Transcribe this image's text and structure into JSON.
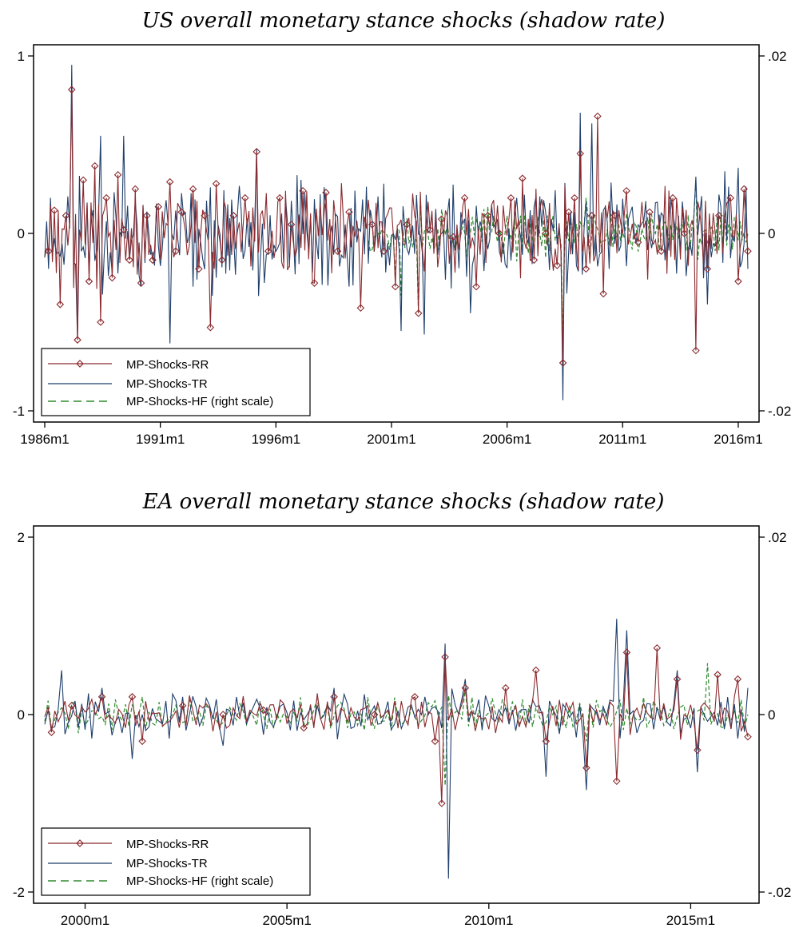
{
  "colors": {
    "rr": "#8B2A2E",
    "tr": "#1F3F6B",
    "hf": "#2E8B2E",
    "axis": "#000000"
  },
  "legend": {
    "rr": "MP-Shocks-RR",
    "tr": "MP-Shocks-TR",
    "hf": "MP-Shocks-HF (right scale)"
  },
  "chart_data": [
    {
      "type": "line",
      "title": "US overall monetary stance shocks (shadow rate)",
      "x_range": [
        "1986-01",
        "2016-06"
      ],
      "x_ticks": [
        "1986m1",
        "1991m1",
        "1996m1",
        "2001m1",
        "2006m1",
        "2011m1",
        "2016m1"
      ],
      "y_left": {
        "range": [
          -1,
          1
        ],
        "ticks": [
          "1",
          "0",
          "-1"
        ],
        "tick_values": [
          1,
          0,
          -1
        ]
      },
      "y_right": {
        "range": [
          -0.02,
          0.02
        ],
        "ticks": [
          ".02",
          "0",
          "-.02"
        ],
        "tick_values": [
          0.02,
          0,
          -0.02
        ]
      },
      "legend_placement": "bottom-left",
      "series": [
        {
          "name": "MP-Shocks-RR",
          "key": "rr",
          "axis": "left",
          "start": "1986-01",
          "end": "2016-06",
          "points": [
            [
              "1986-03",
              -0.1
            ],
            [
              "1986-06",
              0.13
            ],
            [
              "1986-09",
              -0.4
            ],
            [
              "1986-12",
              0.1
            ],
            [
              "1987-03",
              0.81
            ],
            [
              "1987-06",
              -0.6
            ],
            [
              "1987-09",
              0.3
            ],
            [
              "1987-12",
              -0.27
            ],
            [
              "1988-03",
              0.38
            ],
            [
              "1988-06",
              -0.5
            ],
            [
              "1988-09",
              0.2
            ],
            [
              "1988-12",
              -0.25
            ],
            [
              "1989-03",
              0.33
            ],
            [
              "1989-06",
              0.02
            ],
            [
              "1989-09",
              -0.15
            ],
            [
              "1989-12",
              0.25
            ],
            [
              "1990-03",
              -0.28
            ],
            [
              "1990-06",
              0.1
            ],
            [
              "1990-09",
              -0.15
            ],
            [
              "1990-12",
              0.15
            ],
            [
              "1991-06",
              0.29
            ],
            [
              "1991-09",
              -0.1
            ],
            [
              "1991-12",
              0.12
            ],
            [
              "1992-06",
              0.25
            ],
            [
              "1992-09",
              -0.2
            ],
            [
              "1992-12",
              0.1
            ],
            [
              "1993-03",
              -0.53
            ],
            [
              "1993-06",
              0.28
            ],
            [
              "1993-09",
              -0.15
            ],
            [
              "1994-03",
              0.1
            ],
            [
              "1994-09",
              0.2
            ],
            [
              "1995-03",
              0.46
            ],
            [
              "1995-09",
              -0.1
            ],
            [
              "1996-03",
              0.2
            ],
            [
              "1996-09",
              0.05
            ],
            [
              "1997-03",
              0.24
            ],
            [
              "1997-09",
              -0.28
            ],
            [
              "1998-03",
              0.23
            ],
            [
              "1998-09",
              -0.1
            ],
            [
              "1999-03",
              0.12
            ],
            [
              "1999-09",
              -0.42
            ],
            [
              "2000-03",
              0.05
            ],
            [
              "2000-09",
              -0.1
            ],
            [
              "2001-03",
              -0.3
            ],
            [
              "2001-09",
              0.05
            ],
            [
              "2002-03",
              -0.45
            ],
            [
              "2002-09",
              0.02
            ],
            [
              "2003-03",
              0.08
            ],
            [
              "2003-09",
              -0.02
            ],
            [
              "2004-03",
              0.2
            ],
            [
              "2004-09",
              -0.3
            ],
            [
              "2005-03",
              0.1
            ],
            [
              "2005-09",
              0.0
            ],
            [
              "2006-03",
              0.2
            ],
            [
              "2006-09",
              0.31
            ],
            [
              "2007-03",
              -0.15
            ],
            [
              "2007-09",
              0.0
            ],
            [
              "2008-03",
              -0.18
            ],
            [
              "2008-06",
              -0.73
            ],
            [
              "2008-09",
              0.12
            ],
            [
              "2008-12",
              0.2
            ],
            [
              "2009-03",
              0.45
            ],
            [
              "2009-06",
              -0.2
            ],
            [
              "2009-09",
              0.1
            ],
            [
              "2009-12",
              0.66
            ],
            [
              "2010-03",
              -0.34
            ],
            [
              "2010-09",
              0.1
            ],
            [
              "2011-03",
              0.24
            ],
            [
              "2011-09",
              -0.05
            ],
            [
              "2012-03",
              0.12
            ],
            [
              "2012-09",
              -0.1
            ],
            [
              "2013-03",
              0.2
            ],
            [
              "2013-09",
              0.0
            ],
            [
              "2014-03",
              -0.66
            ],
            [
              "2014-09",
              -0.2
            ],
            [
              "2015-03",
              0.1
            ],
            [
              "2015-09",
              0.2
            ],
            [
              "2016-01",
              -0.27
            ],
            [
              "2016-04",
              0.25
            ],
            [
              "2016-06",
              -0.1
            ]
          ],
          "n_points": 366,
          "amplitude": 0.22,
          "seed": 11
        },
        {
          "name": "MP-Shocks-TR",
          "key": "tr",
          "axis": "left",
          "start": "1986-01",
          "end": "2016-06",
          "points": [
            [
              "1986-03",
              -0.2
            ],
            [
              "1987-03",
              0.95
            ],
            [
              "1987-06",
              -0.6
            ],
            [
              "1988-06",
              0.55
            ],
            [
              "1989-06",
              0.55
            ],
            [
              "1990-03",
              -0.3
            ],
            [
              "1991-06",
              -0.62
            ],
            [
              "1992-06",
              -0.3
            ],
            [
              "1993-06",
              -0.25
            ],
            [
              "1995-03",
              0.48
            ],
            [
              "1996-06",
              0.2
            ],
            [
              "1999-03",
              -0.3
            ],
            [
              "2000-09",
              0.28
            ],
            [
              "2001-06",
              -0.55
            ],
            [
              "2002-06",
              -0.57
            ],
            [
              "2003-03",
              0.0
            ],
            [
              "2004-06",
              -0.45
            ],
            [
              "2006-06",
              0.2
            ],
            [
              "2008-06",
              -0.94
            ],
            [
              "2009-03",
              0.68
            ],
            [
              "2009-09",
              0.62
            ],
            [
              "2010-06",
              -0.2
            ],
            [
              "2011-06",
              0.15
            ],
            [
              "2013-06",
              0.1
            ],
            [
              "2014-03",
              0.32
            ],
            [
              "2014-09",
              -0.4
            ],
            [
              "2015-06",
              0.35
            ],
            [
              "2016-01",
              0.37
            ],
            [
              "2016-06",
              -0.2
            ]
          ],
          "n_points": 366,
          "amplitude": 0.26,
          "seed": 23
        },
        {
          "name": "MP-Shocks-HF (right scale)",
          "key": "hf",
          "axis": "right",
          "start": "2000-01",
          "end": "2016-06",
          "points": [
            [
              "2000-06",
              0.0
            ],
            [
              "2001-03",
              -0.005
            ],
            [
              "2001-06",
              -0.007
            ],
            [
              "2002-03",
              -0.009
            ],
            [
              "2003-06",
              0.001
            ],
            [
              "2005-06",
              0.002
            ],
            [
              "2007-06",
              0.0
            ],
            [
              "2008-06",
              -0.012
            ],
            [
              "2009-06",
              0.004
            ],
            [
              "2012-06",
              0.0
            ],
            [
              "2014-03",
              0.006
            ],
            [
              "2015-06",
              0.002
            ],
            [
              "2016-06",
              0.0
            ]
          ],
          "n_points": 198,
          "amplitude": 0.0025,
          "seed": 37
        }
      ]
    },
    {
      "type": "line",
      "title": "EA overall monetary stance shocks (shadow rate)",
      "x_range": [
        "1999-01",
        "2016-06"
      ],
      "x_ticks": [
        "2000m1",
        "2005m1",
        "2010m1",
        "2015m1"
      ],
      "y_left": {
        "range": [
          -2,
          2
        ],
        "ticks": [
          "2",
          "0",
          "-2"
        ],
        "tick_values": [
          2,
          0,
          -2
        ]
      },
      "y_right": {
        "range": [
          -0.02,
          0.02
        ],
        "ticks": [
          ".02",
          "0",
          "-.02"
        ],
        "tick_values": [
          0.02,
          0,
          -0.02
        ]
      },
      "legend_placement": "bottom-left",
      "series": [
        {
          "name": "MP-Shocks-RR",
          "key": "rr",
          "axis": "left",
          "start": "1999-01",
          "end": "2016-06",
          "points": [
            [
              "1999-03",
              -0.2
            ],
            [
              "1999-09",
              0.1
            ],
            [
              "2000-06",
              0.2
            ],
            [
              "2001-03",
              0.2
            ],
            [
              "2001-06",
              -0.3
            ],
            [
              "2002-06",
              0.1
            ],
            [
              "2003-06",
              0.0
            ],
            [
              "2004-06",
              0.05
            ],
            [
              "2005-06",
              -0.15
            ],
            [
              "2006-03",
              0.2
            ],
            [
              "2007-03",
              0.0
            ],
            [
              "2008-03",
              0.2
            ],
            [
              "2008-09",
              -0.3
            ],
            [
              "2008-11",
              -1.0
            ],
            [
              "2008-12",
              0.65
            ],
            [
              "2009-06",
              0.3
            ],
            [
              "2010-06",
              0.3
            ],
            [
              "2011-03",
              0.5
            ],
            [
              "2011-06",
              -0.3
            ],
            [
              "2012-06",
              -0.6
            ],
            [
              "2013-03",
              -0.75
            ],
            [
              "2013-06",
              0.7
            ],
            [
              "2014-03",
              0.75
            ],
            [
              "2014-09",
              0.4
            ],
            [
              "2015-03",
              -0.4
            ],
            [
              "2015-09",
              0.45
            ],
            [
              "2016-03",
              0.4
            ],
            [
              "2016-06",
              -0.25
            ]
          ],
          "n_points": 210,
          "amplitude": 0.18,
          "seed": 51
        },
        {
          "name": "MP-Shocks-TR",
          "key": "tr",
          "axis": "left",
          "start": "1999-01",
          "end": "2016-06",
          "points": [
            [
              "1999-06",
              0.5
            ],
            [
              "2000-06",
              0.3
            ],
            [
              "2001-03",
              -0.5
            ],
            [
              "2002-06",
              0.2
            ],
            [
              "2003-06",
              -0.35
            ],
            [
              "2006-03",
              0.3
            ],
            [
              "2008-06",
              0.2
            ],
            [
              "2008-12",
              0.8
            ],
            [
              "2009-01",
              -1.85
            ],
            [
              "2009-06",
              0.4
            ],
            [
              "2011-06",
              -0.7
            ],
            [
              "2012-06",
              -0.85
            ],
            [
              "2013-03",
              1.08
            ],
            [
              "2013-06",
              0.95
            ],
            [
              "2014-09",
              0.5
            ],
            [
              "2015-03",
              -0.65
            ],
            [
              "2016-06",
              0.3
            ]
          ],
          "n_points": 210,
          "amplitude": 0.22,
          "seed": 67
        },
        {
          "name": "MP-Shocks-HF (right scale)",
          "key": "hf",
          "axis": "right",
          "start": "1999-01",
          "end": "2016-06",
          "points": [
            [
              "2001-06",
              0.002
            ],
            [
              "2004-06",
              0.0
            ],
            [
              "2008-12",
              -0.008
            ],
            [
              "2009-06",
              0.003
            ],
            [
              "2012-06",
              -0.003
            ],
            [
              "2015-06",
              0.0058
            ],
            [
              "2016-06",
              0.0
            ]
          ],
          "n_points": 210,
          "amplitude": 0.0018,
          "seed": 79
        }
      ]
    }
  ]
}
